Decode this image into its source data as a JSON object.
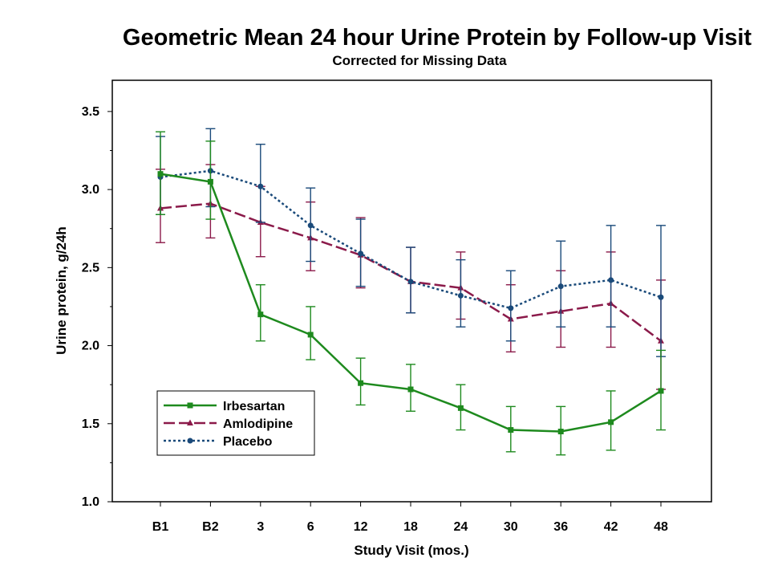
{
  "chart_data": {
    "type": "line",
    "title": "Geometric Mean 24 hour Urine Protein by Follow-up Visit",
    "subtitle": "Corrected for Missing Data",
    "xlabel": "Study Visit (mos.)",
    "ylabel": "Urine protein, g/24h",
    "categories": [
      "B1",
      "B2",
      "3",
      "6",
      "12",
      "18",
      "24",
      "30",
      "36",
      "42",
      "48"
    ],
    "ylim": [
      1.0,
      3.7
    ],
    "yticks": [
      "1.0",
      "1.5",
      "2.0",
      "2.5",
      "3.0",
      "3.5"
    ],
    "grid": false,
    "legend_position": "lower-left",
    "series": [
      {
        "name": "Irbesartan",
        "color": "#1e8a1e",
        "marker": "square",
        "line_style": "solid",
        "values": [
          3.1,
          3.05,
          2.2,
          2.07,
          1.76,
          1.72,
          1.6,
          1.46,
          1.45,
          1.51,
          1.71
        ],
        "lower": [
          2.84,
          2.81,
          2.03,
          1.91,
          1.62,
          1.58,
          1.46,
          1.32,
          1.3,
          1.33,
          1.46
        ],
        "upper": [
          3.37,
          3.31,
          2.39,
          2.25,
          1.92,
          1.88,
          1.75,
          1.61,
          1.61,
          1.71,
          1.97
        ]
      },
      {
        "name": "Amlodipine",
        "color": "#8b1a4a",
        "marker": "triangle",
        "line_style": "dashed",
        "values": [
          2.88,
          2.91,
          2.79,
          2.69,
          2.58,
          2.41,
          2.37,
          2.17,
          2.22,
          2.27,
          2.03
        ],
        "lower": [
          2.66,
          2.69,
          2.57,
          2.48,
          2.37,
          2.21,
          2.17,
          1.96,
          1.99,
          1.99,
          1.72
        ],
        "upper": [
          3.13,
          3.16,
          3.02,
          2.92,
          2.82,
          2.63,
          2.6,
          2.39,
          2.48,
          2.6,
          2.42
        ]
      },
      {
        "name": "Placebo",
        "color": "#1a4a7a",
        "marker": "circle",
        "line_style": "dotted",
        "values": [
          3.08,
          3.12,
          3.02,
          2.77,
          2.59,
          2.41,
          2.32,
          2.24,
          2.38,
          2.42,
          2.31
        ],
        "lower": [
          2.84,
          2.89,
          2.79,
          2.54,
          2.38,
          2.21,
          2.12,
          2.03,
          2.12,
          2.12,
          1.93
        ],
        "upper": [
          3.34,
          3.39,
          3.29,
          3.01,
          2.81,
          2.63,
          2.55,
          2.48,
          2.67,
          2.77,
          2.77
        ]
      }
    ]
  }
}
